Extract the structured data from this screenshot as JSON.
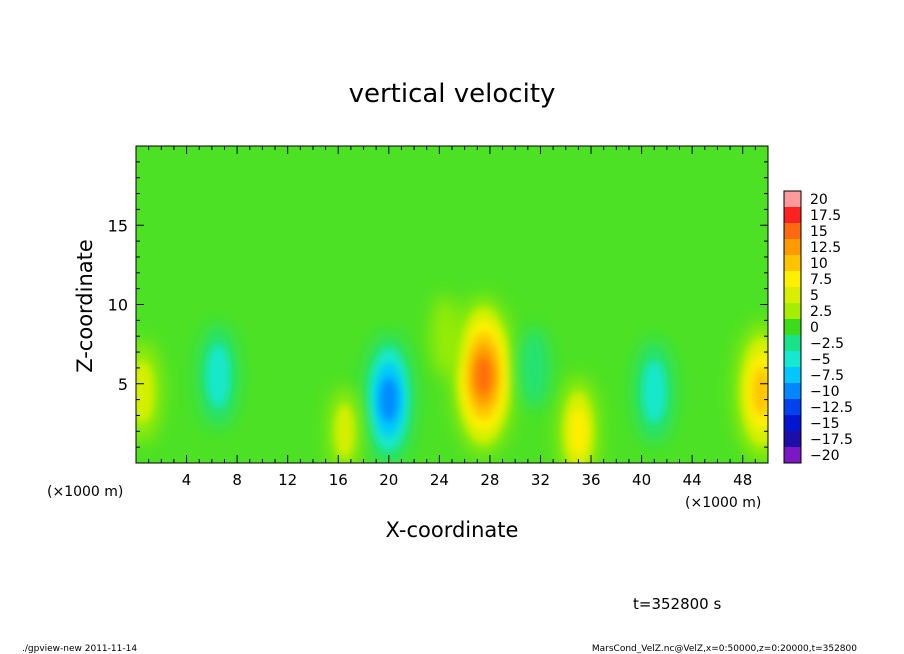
{
  "chart_data": {
    "type": "heatmap",
    "title": "vertical velocity",
    "xlabel": "X-coordinate",
    "ylabel": "Z-coordinate",
    "x_unit_left": "(×1000 m)",
    "x_unit_right": "(×1000 m)",
    "xlim": [
      0,
      50
    ],
    "ylim": [
      0,
      20
    ],
    "x_ticks": [
      "4",
      "8",
      "12",
      "16",
      "20",
      "24",
      "28",
      "32",
      "36",
      "40",
      "44",
      "48"
    ],
    "y_ticks": [
      "5",
      "10",
      "15"
    ],
    "time_label": "t=352800 s",
    "colorbar": {
      "levels": [
        "20",
        "17.5",
        "15",
        "12.5",
        "10",
        "7.5",
        "5",
        "2.5",
        "0",
        "−2.5",
        "−5",
        "−7.5",
        "−10",
        "−12.5",
        "−15",
        "−17.5",
        "−20"
      ],
      "colors": [
        "#ff9a9a",
        "#ff2020",
        "#ff6a10",
        "#ff9a00",
        "#ffc400",
        "#fff000",
        "#d8f000",
        "#a6ee00",
        "#3ddc1a",
        "#19e38a",
        "#14e8cf",
        "#00c8ff",
        "#0087ff",
        "#0043ee",
        "#0017cf",
        "#1e0ea8",
        "#7b18c4"
      ]
    },
    "background_color": "#4ce124",
    "features": [
      {
        "x": 27.5,
        "z": 5.5,
        "value": 14
      },
      {
        "x": 20.0,
        "z": 4.0,
        "value": -10
      },
      {
        "x": 49.5,
        "z": 4.5,
        "value": 11
      },
      {
        "x": 0.5,
        "z": 4.5,
        "value": 6
      },
      {
        "x": 35.0,
        "z": 2.0,
        "value": 7
      },
      {
        "x": 41.0,
        "z": 4.5,
        "value": -6
      },
      {
        "x": 6.5,
        "z": 5.5,
        "value": -6
      },
      {
        "x": 16.5,
        "z": 2.0,
        "value": 4
      },
      {
        "x": 31.5,
        "z": 6.0,
        "value": -3
      },
      {
        "x": 24.5,
        "z": 8.0,
        "value": 3
      }
    ]
  },
  "footer": {
    "left": "./gpview-new   2011-11-14",
    "right": "MarsCond_VelZ.nc@VelZ,x=0:50000,z=0:20000,t=352800"
  }
}
